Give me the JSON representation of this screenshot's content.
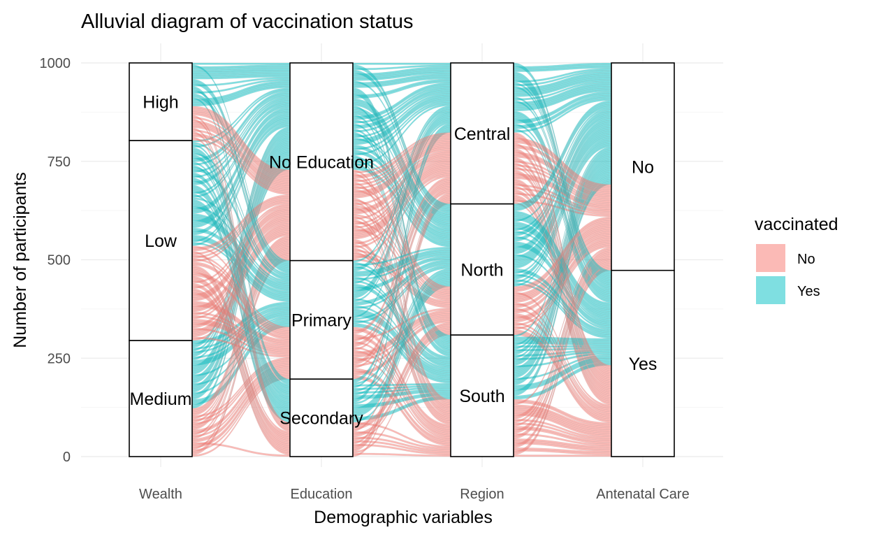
{
  "chart_data": {
    "type": "alluvial",
    "title": "Alluvial diagram of vaccination status",
    "xlabel": "Demographic variables",
    "ylabel": "Number of participants",
    "ylim": [
      0,
      1000
    ],
    "yticks": [
      0,
      250,
      500,
      750,
      1000
    ],
    "grid": true,
    "legend": {
      "title": "vaccinated",
      "placement": "right"
    },
    "fill_levels": [
      {
        "name": "No",
        "color": "#F8766D"
      },
      {
        "name": "Yes",
        "color": "#00BFC4"
      }
    ],
    "axes": [
      {
        "name": "Wealth",
        "strata": [
          {
            "label": "Medium",
            "count": 295
          },
          {
            "label": "Low",
            "count": 508
          },
          {
            "label": "High",
            "count": 197
          }
        ]
      },
      {
        "name": "Education",
        "strata": [
          {
            "label": "Secondary",
            "count": 197
          },
          {
            "label": "Primary",
            "count": 301
          },
          {
            "label": "No Education",
            "count": 502
          }
        ]
      },
      {
        "name": "Region",
        "strata": [
          {
            "label": "South",
            "count": 309
          },
          {
            "label": "North",
            "count": 333
          },
          {
            "label": "Central",
            "count": 358
          }
        ]
      },
      {
        "name": "Antenatal Care",
        "strata": [
          {
            "label": "Yes",
            "count": 473
          },
          {
            "label": "No",
            "count": 527
          }
        ]
      }
    ],
    "total": 1000
  }
}
